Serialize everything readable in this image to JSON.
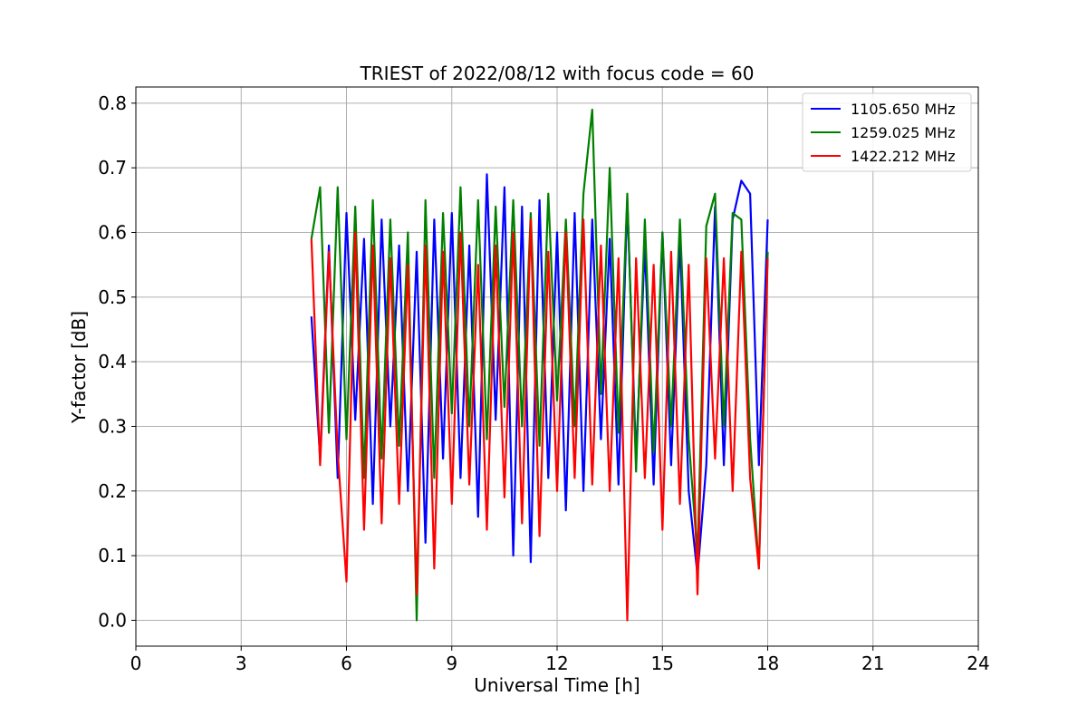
{
  "chart_data": {
    "type": "line",
    "title": "TRIEST of 2022/08/12 with focus code = 60",
    "xlabel": "Universal Time [h]",
    "ylabel": "Y-factor [dB]",
    "xlim": [
      0,
      24
    ],
    "ylim": [
      -0.04,
      0.825
    ],
    "xticks": [
      0,
      3,
      6,
      9,
      12,
      15,
      18,
      21,
      24
    ],
    "yticks": [
      0.0,
      0.1,
      0.2,
      0.3,
      0.4,
      0.5,
      0.6,
      0.7,
      0.8
    ],
    "xtick_labels": [
      "0",
      "3",
      "6",
      "9",
      "12",
      "15",
      "18",
      "21",
      "24"
    ],
    "ytick_labels": [
      "0.0",
      "0.1",
      "0.2",
      "0.3",
      "0.4",
      "0.5",
      "0.6",
      "0.7",
      "0.8"
    ],
    "grid": true,
    "legend_position": "top-right",
    "series": [
      {
        "name": "1105.650 MHz",
        "color": "#0000ff",
        "x": [
          5.0,
          5.25,
          5.5,
          5.75,
          6.0,
          6.25,
          6.5,
          6.75,
          7.0,
          7.25,
          7.5,
          7.75,
          8.0,
          8.25,
          8.5,
          8.75,
          9.0,
          9.25,
          9.5,
          9.75,
          10.0,
          10.25,
          10.5,
          10.75,
          11.0,
          11.25,
          11.5,
          11.75,
          12.0,
          12.25,
          12.5,
          12.75,
          13.0,
          13.25,
          13.5,
          13.75,
          14.0,
          14.25,
          14.5,
          14.75,
          15.0,
          15.25,
          15.5,
          15.75,
          16.0,
          16.25,
          16.5,
          16.75,
          17.0,
          17.25,
          17.5,
          17.75,
          18.0
        ],
        "y": [
          0.47,
          0.25,
          0.58,
          0.22,
          0.63,
          0.31,
          0.59,
          0.18,
          0.62,
          0.3,
          0.58,
          0.2,
          0.57,
          0.12,
          0.62,
          0.25,
          0.63,
          0.22,
          0.58,
          0.16,
          0.69,
          0.31,
          0.67,
          0.1,
          0.64,
          0.09,
          0.65,
          0.22,
          0.6,
          0.17,
          0.63,
          0.2,
          0.62,
          0.28,
          0.59,
          0.21,
          0.65,
          0.25,
          0.58,
          0.21,
          0.6,
          0.24,
          0.59,
          0.2,
          0.07,
          0.24,
          0.64,
          0.24,
          0.62,
          0.68,
          0.66,
          0.24,
          0.62
        ]
      },
      {
        "name": "1259.025 MHz",
        "color": "#008000",
        "x": [
          5.0,
          5.25,
          5.5,
          5.75,
          6.0,
          6.25,
          6.5,
          6.75,
          7.0,
          7.25,
          7.5,
          7.75,
          8.0,
          8.25,
          8.5,
          8.75,
          9.0,
          9.25,
          9.5,
          9.75,
          10.0,
          10.25,
          10.5,
          10.75,
          11.0,
          11.25,
          11.5,
          11.75,
          12.0,
          12.25,
          12.5,
          12.75,
          13.0,
          13.25,
          13.5,
          13.75,
          14.0,
          14.25,
          14.5,
          14.75,
          15.0,
          15.25,
          15.5,
          15.75,
          16.0,
          16.25,
          16.5,
          16.75,
          17.0,
          17.25,
          17.5,
          17.75,
          18.0
        ],
        "y": [
          0.59,
          0.67,
          0.29,
          0.67,
          0.28,
          0.64,
          0.22,
          0.65,
          0.25,
          0.62,
          0.27,
          0.6,
          0.0,
          0.65,
          0.22,
          0.63,
          0.32,
          0.67,
          0.3,
          0.65,
          0.28,
          0.64,
          0.33,
          0.65,
          0.3,
          0.63,
          0.27,
          0.66,
          0.34,
          0.62,
          0.3,
          0.66,
          0.79,
          0.35,
          0.7,
          0.29,
          0.66,
          0.23,
          0.62,
          0.26,
          0.6,
          0.3,
          0.62,
          0.28,
          0.1,
          0.61,
          0.66,
          0.3,
          0.63,
          0.62,
          0.28,
          0.08,
          0.57
        ]
      },
      {
        "name": "1422.212 MHz",
        "color": "#ff0000",
        "x": [
          5.0,
          5.25,
          5.5,
          5.75,
          6.0,
          6.25,
          6.5,
          6.75,
          7.0,
          7.25,
          7.5,
          7.75,
          8.0,
          8.25,
          8.5,
          8.75,
          9.0,
          9.25,
          9.5,
          9.75,
          10.0,
          10.25,
          10.5,
          10.75,
          11.0,
          11.25,
          11.5,
          11.75,
          12.0,
          12.25,
          12.5,
          12.75,
          13.0,
          13.25,
          13.5,
          13.75,
          14.0,
          14.25,
          14.5,
          14.75,
          15.0,
          15.25,
          15.5,
          15.75,
          16.0,
          16.25,
          16.5,
          16.75,
          17.0,
          17.25,
          17.5,
          17.75,
          18.0
        ],
        "y": [
          0.59,
          0.24,
          0.57,
          0.26,
          0.06,
          0.6,
          0.14,
          0.58,
          0.15,
          0.56,
          0.18,
          0.55,
          0.04,
          0.58,
          0.08,
          0.57,
          0.18,
          0.6,
          0.21,
          0.55,
          0.14,
          0.58,
          0.19,
          0.6,
          0.15,
          0.62,
          0.13,
          0.57,
          0.2,
          0.6,
          0.22,
          0.62,
          0.21,
          0.58,
          0.2,
          0.56,
          0.0,
          0.56,
          0.22,
          0.55,
          0.14,
          0.57,
          0.18,
          0.55,
          0.04,
          0.56,
          0.25,
          0.56,
          0.2,
          0.57,
          0.22,
          0.08,
          0.56
        ]
      }
    ]
  }
}
